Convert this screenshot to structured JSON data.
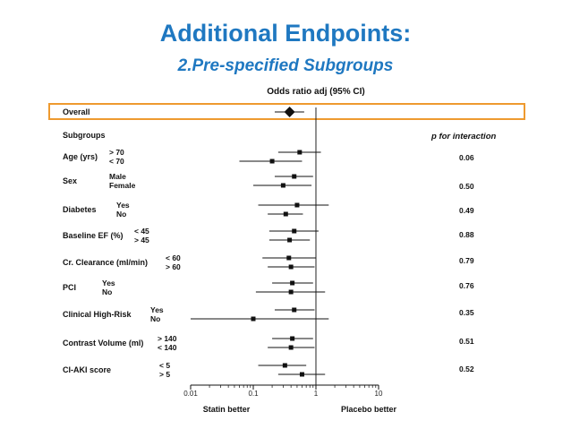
{
  "slide": {
    "title": "Additional Endpoints:",
    "subtitle": "2.Pre-specified Subgroups"
  },
  "chart_data": {
    "type": "forest",
    "scale": "log",
    "xlim": [
      0.01,
      10
    ],
    "xticks": [
      "0.01",
      "0.1",
      "1",
      "10"
    ],
    "xtick_values": [
      0.01,
      0.1,
      1,
      10
    ],
    "header": "Odds ratio adj (95% CI)",
    "xlabel_left": "Statin better",
    "xlabel_right": "Placebo better",
    "pheader": "p for interaction",
    "subgroups_header": "Subgroups",
    "highlight_color": "#ee9a2f",
    "rows": [
      {
        "group": "Overall",
        "levels": [
          "Overall"
        ],
        "or": [
          0.38
        ],
        "lo": [
          0.22
        ],
        "hi": [
          0.65
        ],
        "p": "",
        "overall": true
      },
      {
        "group": "Age (yrs)",
        "levels": [
          "> 70",
          "< 70"
        ],
        "or": [
          0.55,
          0.2
        ],
        "lo": [
          0.25,
          0.06
        ],
        "hi": [
          1.2,
          0.6
        ],
        "p": "0.06"
      },
      {
        "group": "Sex",
        "levels": [
          "Male",
          "Female"
        ],
        "or": [
          0.45,
          0.3
        ],
        "lo": [
          0.22,
          0.1
        ],
        "hi": [
          0.9,
          0.85
        ],
        "p": "0.50"
      },
      {
        "group": "Diabetes",
        "levels": [
          "Yes",
          "No"
        ],
        "or": [
          0.5,
          0.33
        ],
        "lo": [
          0.12,
          0.17
        ],
        "hi": [
          1.6,
          0.62
        ],
        "p": "0.49"
      },
      {
        "group": "Baseline EF (%)",
        "levels": [
          "< 45",
          "> 45"
        ],
        "or": [
          0.45,
          0.38
        ],
        "lo": [
          0.18,
          0.18
        ],
        "hi": [
          1.1,
          0.8
        ],
        "p": "0.88"
      },
      {
        "group": "Cr. Clearance (ml/min)",
        "levels": [
          "< 60",
          "> 60"
        ],
        "or": [
          0.37,
          0.4
        ],
        "lo": [
          0.14,
          0.17
        ],
        "hi": [
          1.0,
          0.95
        ],
        "p": "0.79"
      },
      {
        "group": "PCI",
        "levels": [
          "Yes",
          "No"
        ],
        "or": [
          0.42,
          0.4
        ],
        "lo": [
          0.2,
          0.11
        ],
        "hi": [
          0.9,
          1.4
        ],
        "p": "0.76"
      },
      {
        "group": "Clinical High-Risk",
        "levels": [
          "Yes",
          "No"
        ],
        "or": [
          0.45,
          0.1
        ],
        "lo": [
          0.22,
          0.01
        ],
        "hi": [
          0.95,
          1.6
        ],
        "p": "0.35"
      },
      {
        "group": "Contrast Volume (ml)",
        "levels": [
          "> 140",
          "< 140"
        ],
        "or": [
          0.42,
          0.4
        ],
        "lo": [
          0.2,
          0.17
        ],
        "hi": [
          0.9,
          0.95
        ],
        "p": "0.51"
      },
      {
        "group": "CI-AKI score",
        "levels": [
          "< 5",
          "> 5"
        ],
        "or": [
          0.32,
          0.6
        ],
        "lo": [
          0.12,
          0.25
        ],
        "hi": [
          0.7,
          1.4
        ],
        "p": "0.52"
      }
    ]
  }
}
